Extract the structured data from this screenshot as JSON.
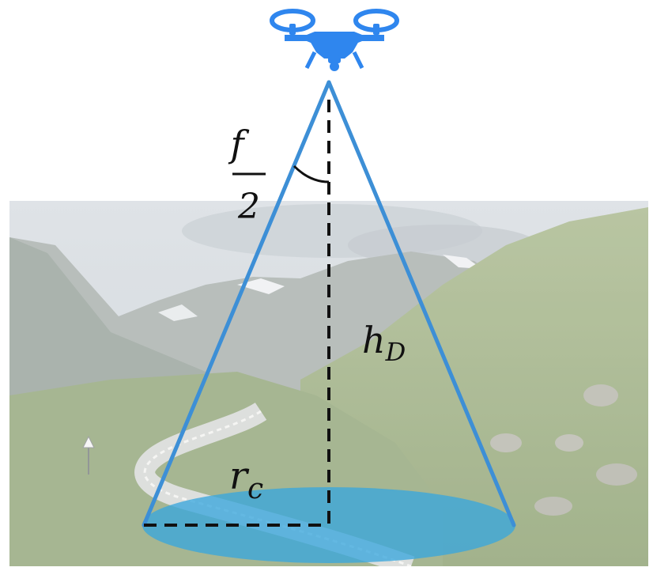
{
  "labels": {
    "angle_numerator": "f",
    "angle_denominator": "2",
    "height_base": "h",
    "height_sub": "D",
    "radius_base": "r",
    "radius_sub": "c"
  },
  "colors": {
    "cone": "#3d8fd6",
    "drone": "#2f86ee",
    "footprint": "#3aa6dc",
    "dashed": "#111111"
  },
  "icons": {
    "uav": "drone-icon",
    "background": "mountain-road-landscape"
  }
}
